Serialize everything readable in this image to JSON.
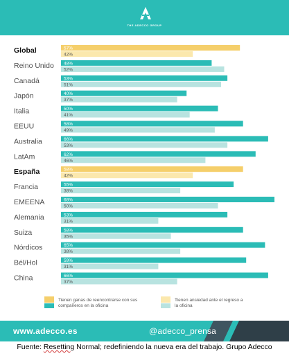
{
  "brand": {
    "logo_text": "THE ADECCO GROUP"
  },
  "colors": {
    "teal": "#2bbcb6",
    "light_teal": "#b8e3e0",
    "yellow": "#f5cf6b",
    "light_yellow": "#fbe8ad",
    "label_dark": "#4d4d4d",
    "footer_dark": "#3f5560"
  },
  "chart_data": {
    "type": "bar",
    "orientation": "horizontal",
    "xlim": [
      0,
      70
    ],
    "categories": [
      "Global",
      "Reino Unido",
      "Canadá",
      "Japón",
      "Italia",
      "EEUU",
      "Australia",
      "LatAm",
      "España",
      "Francia",
      "EMEENA",
      "Alemania",
      "Suiza",
      "Nórdicos",
      "Bél/Hol",
      "China"
    ],
    "highlighted": [
      "Global",
      "España"
    ],
    "series": [
      {
        "name": "Tienen ganas de reencontrarse con sus compañeros en la oficina",
        "values": [
          57,
          48,
          53,
          40,
          50,
          58,
          66,
          62,
          58,
          55,
          68,
          53,
          58,
          65,
          59,
          66
        ]
      },
      {
        "name": "Tienen ansiedad ante el regreso a la oficina",
        "values": [
          42,
          52,
          51,
          37,
          41,
          49,
          53,
          46,
          42,
          38,
          50,
          31,
          35,
          38,
          31,
          37
        ]
      }
    ],
    "value_suffix": "%"
  },
  "legend": {
    "item1": "Tienen ganas de reencontrarse con sus compañeros en la oficina",
    "item2": "Tienen ansiedad ante el regreso a la oficina"
  },
  "footer": {
    "url": "www.adecco.es",
    "handle": "@adecco_prensa"
  },
  "caption": {
    "prefix": "Fuente: ",
    "underlined": "Resetting",
    "rest": " Normal; redefiniendo la nueva era del trabajo. Grupo Adecco"
  }
}
